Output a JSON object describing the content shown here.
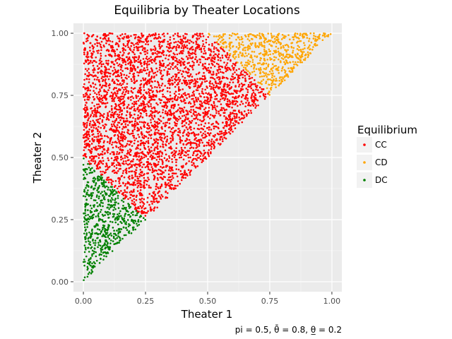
{
  "chart_data": {
    "type": "scatter",
    "title": "Equilibria by Theater Locations",
    "xlabel": "Theater 1",
    "ylabel": "Theater 2",
    "caption": "pi = 0.5, θ̄ = 0.8, θ̲ = 0.2",
    "xlim": [
      -0.04,
      1.04
    ],
    "ylim": [
      -0.04,
      1.04
    ],
    "x_ticks": [
      0.0,
      0.25,
      0.5,
      0.75,
      1.0
    ],
    "y_ticks": [
      0.0,
      0.25,
      0.5,
      0.75,
      1.0
    ],
    "x_tick_labels": [
      "0.00",
      "0.25",
      "0.50",
      "0.75",
      "1.00"
    ],
    "y_tick_labels": [
      "0.00",
      "0.25",
      "0.50",
      "0.75",
      "1.00"
    ],
    "grid": true,
    "legend": {
      "title": "Equilibrium",
      "position": "right",
      "entries": [
        {
          "label": "CC",
          "color": "#ff0000"
        },
        {
          "label": "CD",
          "color": "#ffa500"
        },
        {
          "label": "DC",
          "color": "#008000"
        }
      ]
    },
    "region_rules": {
      "description_domain": "points satisfy 0 <= x <= y <= 1",
      "DC": "x + y <= 0.5",
      "CD": "x + y >= 1.5",
      "CC": "otherwise"
    },
    "point_count": 5000,
    "series": [
      {
        "name": "CC",
        "color": "#ff0000",
        "sample_points": [
          [
            0.0,
            0.55
          ],
          [
            0.1,
            0.8
          ],
          [
            0.2,
            0.5
          ],
          [
            0.3,
            0.95
          ],
          [
            0.4,
            0.7
          ],
          [
            0.5,
            0.9
          ],
          [
            0.25,
            0.3
          ],
          [
            0.6,
            0.8
          ],
          [
            0.7,
            0.75
          ],
          [
            0.45,
            0.55
          ]
        ]
      },
      {
        "name": "CD",
        "color": "#ffa500",
        "sample_points": [
          [
            0.5,
            1.0
          ],
          [
            0.6,
            0.95
          ],
          [
            0.7,
            0.9
          ],
          [
            0.75,
            0.8
          ],
          [
            0.8,
            0.9
          ],
          [
            0.9,
            0.95
          ],
          [
            0.98,
            1.0
          ],
          [
            0.65,
            0.98
          ]
        ]
      },
      {
        "name": "DC",
        "color": "#008000",
        "sample_points": [
          [
            0.0,
            0.01
          ],
          [
            0.0,
            0.5
          ],
          [
            0.05,
            0.3
          ],
          [
            0.1,
            0.2
          ],
          [
            0.15,
            0.3
          ],
          [
            0.2,
            0.25
          ],
          [
            0.25,
            0.25
          ],
          [
            0.08,
            0.4
          ]
        ]
      }
    ]
  }
}
